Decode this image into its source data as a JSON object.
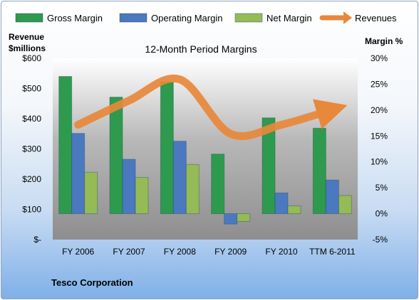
{
  "chart_data": {
    "type": "bar",
    "title": "12-Month Period Margins",
    "company": "Tesco Corporation",
    "y_left_label_line1": "Revenue",
    "y_left_label_line2": "$millions",
    "y_right_label": "Margin %",
    "categories": [
      "FY 2006",
      "FY 2007",
      "FY 2008",
      "FY 2009",
      "FY 2010",
      "TTM 6-2011"
    ],
    "y_left_ticks": [
      "$-",
      "$100",
      "$200",
      "$300",
      "$400",
      "$500",
      "$600"
    ],
    "y_right_ticks": [
      "-5%",
      "0%",
      "5%",
      "10%",
      "15%",
      "20%",
      "25%",
      "30%"
    ],
    "ylim_left": [
      0,
      600
    ],
    "ylim_right": [
      -5,
      30
    ],
    "series": [
      {
        "name": "Gross Margin",
        "color": "#2e9a4e",
        "axis": "right",
        "values": [
          26.5,
          22.5,
          25.5,
          11.5,
          18.5,
          16.5
        ]
      },
      {
        "name": "Operating Margin",
        "color": "#4a79c0",
        "axis": "right",
        "values": [
          15.5,
          10.5,
          14.0,
          -2.0,
          4.0,
          6.5
        ]
      },
      {
        "name": "Net Margin",
        "color": "#94bb55",
        "axis": "right",
        "values": [
          8.0,
          7.0,
          9.5,
          -1.5,
          1.5,
          3.5
        ]
      },
      {
        "name": "Revenues",
        "color": "#e8883a",
        "axis": "left",
        "type": "line",
        "values": [
          380,
          460,
          530,
          350,
          380,
          430
        ]
      }
    ],
    "legend_position": "top",
    "grid": false
  }
}
